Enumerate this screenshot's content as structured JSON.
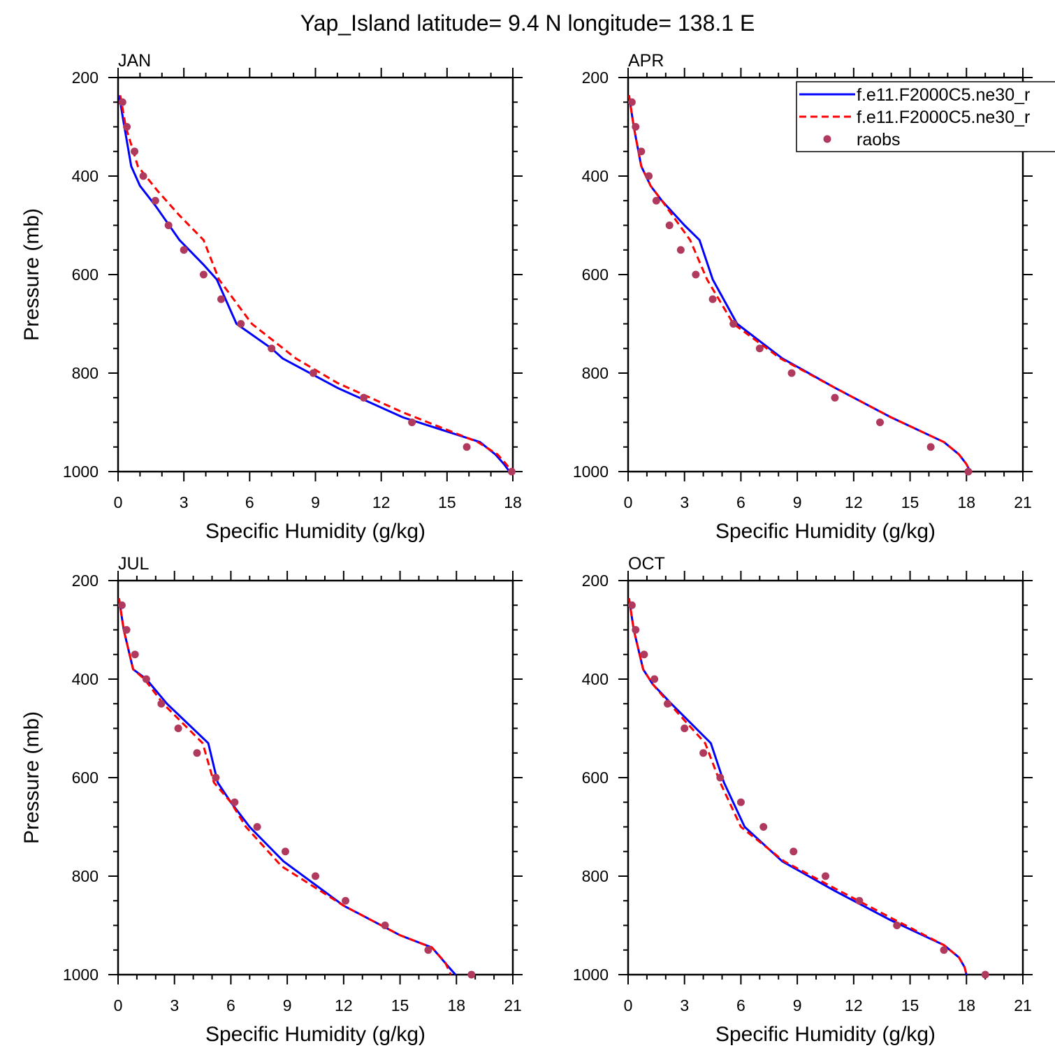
{
  "figure_title": "Yap_Island  latitude= 9.4 N longitude= 138.1 E",
  "legend": {
    "entries": [
      {
        "label": "f.e11.F2000C5.ne30_r",
        "style": "solid",
        "color": "#0000ff"
      },
      {
        "label": "f.e11.F2000C5.ne30_r",
        "style": "dashed",
        "color": "#ff0000"
      },
      {
        "label": "raobs",
        "style": "marker",
        "color": "#b03a5e"
      }
    ]
  },
  "colors": {
    "model_1": "#0000ff",
    "model_2": "#ff0000",
    "raobs": "#b03a5e"
  },
  "chart_data": [
    {
      "type": "line",
      "title": "JAN",
      "xlabel": "Specific Humidity (g/kg)",
      "ylabel": "Pressure (mb)",
      "xlim": [
        0,
        18
      ],
      "ylim": [
        200,
        1000
      ],
      "x_ticks": [
        0,
        3,
        6,
        9,
        12,
        15,
        18
      ],
      "y_ticks": [
        200,
        400,
        600,
        800,
        1000
      ],
      "series": [
        {
          "name": "f.e11.F2000C5.ne30_r",
          "style": "solid",
          "x": [
            0.05,
            0.25,
            0.6,
            1.0,
            1.7,
            2.8,
            3.9,
            4.5,
            5.4,
            7.0,
            7.5,
            10.0,
            13.0,
            16.5,
            17.2,
            17.6,
            17.85
          ],
          "y": [
            236,
            290,
            380,
            420,
            460,
            530,
            580,
            610,
            700,
            750,
            770,
            830,
            890,
            940,
            965,
            985,
            1000
          ]
        },
        {
          "name": "f.e11.F2000C5.ne30_r",
          "style": "dashed",
          "x": [
            0.1,
            0.35,
            0.9,
            1.8,
            2.8,
            3.9,
            4.6,
            6.1,
            8.1,
            10.0,
            13.0,
            16.4,
            17.3,
            17.7,
            17.95
          ],
          "y": [
            236,
            300,
            380,
            430,
            480,
            530,
            610,
            700,
            770,
            820,
            880,
            940,
            965,
            985,
            1000
          ]
        },
        {
          "name": "raobs",
          "style": "marker",
          "x": [
            0.2,
            0.4,
            0.75,
            1.15,
            1.7,
            2.3,
            3.0,
            3.9,
            4.7,
            5.6,
            7.0,
            8.9,
            11.2,
            13.4,
            15.9,
            17.95
          ],
          "y": [
            250,
            300,
            350,
            400,
            450,
            500,
            550,
            600,
            650,
            700,
            750,
            800,
            850,
            900,
            950,
            1000
          ]
        }
      ]
    },
    {
      "type": "line",
      "title": "APR",
      "xlabel": "Specific Humidity (g/kg)",
      "ylabel": "",
      "xlim": [
        0,
        21
      ],
      "ylim": [
        200,
        1000
      ],
      "x_ticks": [
        0,
        3,
        6,
        9,
        12,
        15,
        18,
        21
      ],
      "y_ticks": [
        200,
        400,
        600,
        800,
        1000
      ],
      "series": [
        {
          "name": "f.e11.F2000C5.ne30_r",
          "style": "solid",
          "x": [
            0.05,
            0.3,
            0.7,
            1.2,
            1.8,
            3.0,
            3.8,
            4.5,
            5.8,
            8.2,
            11.0,
            14.0,
            16.8,
            17.6,
            18.0,
            18.2
          ],
          "y": [
            236,
            300,
            380,
            420,
            450,
            500,
            530,
            610,
            700,
            770,
            830,
            890,
            940,
            965,
            985,
            1000
          ]
        },
        {
          "name": "f.e11.F2000C5.ne30_r",
          "style": "dashed",
          "x": [
            0.05,
            0.3,
            0.7,
            1.2,
            1.8,
            3.3,
            4.2,
            5.6,
            8.1,
            11.0,
            14.0,
            16.8,
            17.6,
            18.0,
            18.2
          ],
          "y": [
            236,
            300,
            380,
            420,
            450,
            530,
            610,
            700,
            770,
            830,
            890,
            940,
            965,
            985,
            1000
          ]
        },
        {
          "name": "raobs",
          "style": "marker",
          "x": [
            0.2,
            0.4,
            0.7,
            1.1,
            1.5,
            2.2,
            2.8,
            3.6,
            4.5,
            5.6,
            7.0,
            8.7,
            11.0,
            13.4,
            16.1,
            18.1
          ],
          "y": [
            250,
            300,
            350,
            400,
            450,
            500,
            550,
            600,
            650,
            700,
            750,
            800,
            850,
            900,
            950,
            1000
          ]
        }
      ]
    },
    {
      "type": "line",
      "title": "JUL",
      "xlabel": "Specific Humidity (g/kg)",
      "ylabel": "Pressure (mb)",
      "xlim": [
        0,
        21
      ],
      "ylim": [
        200,
        1000
      ],
      "x_ticks": [
        0,
        3,
        6,
        9,
        12,
        15,
        18,
        21
      ],
      "y_ticks": [
        200,
        400,
        600,
        800,
        1000
      ],
      "series": [
        {
          "name": "f.e11.F2000C5.ne30_r",
          "style": "solid",
          "x": [
            0.05,
            0.3,
            0.8,
            1.5,
            2.6,
            4.8,
            5.3,
            6.0,
            7.0,
            8.8,
            12.0,
            15.0,
            16.7,
            17.6,
            17.95
          ],
          "y": [
            236,
            300,
            380,
            400,
            450,
            530,
            610,
            650,
            700,
            770,
            860,
            920,
            945,
            985,
            1000
          ]
        },
        {
          "name": "f.e11.F2000C5.ne30_r",
          "style": "dashed",
          "x": [
            0.05,
            0.3,
            0.8,
            1.4,
            2.4,
            4.5,
            5.1,
            6.0,
            6.8,
            8.7,
            12.0,
            15.0,
            16.7,
            17.4,
            17.7
          ],
          "y": [
            236,
            300,
            380,
            400,
            450,
            530,
            610,
            650,
            700,
            780,
            860,
            920,
            945,
            975,
            1000
          ]
        },
        {
          "name": "raobs",
          "style": "marker",
          "x": [
            0.2,
            0.45,
            0.9,
            1.5,
            2.3,
            3.2,
            4.2,
            5.2,
            6.2,
            7.4,
            8.9,
            10.5,
            12.1,
            14.2,
            16.5,
            18.8
          ],
          "y": [
            250,
            300,
            350,
            400,
            450,
            500,
            550,
            600,
            650,
            700,
            750,
            800,
            850,
            900,
            950,
            1000
          ]
        }
      ]
    },
    {
      "type": "line",
      "title": "OCT",
      "xlabel": "Specific Humidity (g/kg)",
      "ylabel": "",
      "xlim": [
        0,
        21
      ],
      "ylim": [
        200,
        1000
      ],
      "x_ticks": [
        0,
        3,
        6,
        9,
        12,
        15,
        18,
        21
      ],
      "y_ticks": [
        200,
        400,
        600,
        800,
        1000
      ],
      "series": [
        {
          "name": "f.e11.F2000C5.ne30_r",
          "style": "solid",
          "x": [
            0.05,
            0.3,
            0.8,
            1.3,
            2.3,
            4.4,
            5.1,
            6.2,
            8.2,
            11.0,
            14.0,
            16.8,
            17.6,
            17.9,
            18.0
          ],
          "y": [
            236,
            300,
            380,
            410,
            450,
            530,
            610,
            700,
            770,
            830,
            890,
            940,
            965,
            985,
            1000
          ]
        },
        {
          "name": "f.e11.F2000C5.ne30_r",
          "style": "dashed",
          "x": [
            0.05,
            0.3,
            0.8,
            1.3,
            2.2,
            4.1,
            4.9,
            6.0,
            8.3,
            11.0,
            14.0,
            16.8,
            17.6,
            17.9,
            18.0
          ],
          "y": [
            236,
            300,
            380,
            410,
            450,
            530,
            610,
            700,
            770,
            825,
            885,
            940,
            965,
            985,
            1000
          ]
        },
        {
          "name": "raobs",
          "style": "marker",
          "x": [
            0.2,
            0.4,
            0.85,
            1.4,
            2.1,
            3.0,
            4.0,
            4.9,
            6.0,
            7.2,
            8.8,
            10.5,
            12.3,
            14.3,
            16.8,
            19.0
          ],
          "y": [
            250,
            300,
            350,
            400,
            450,
            500,
            550,
            600,
            650,
            700,
            750,
            800,
            850,
            900,
            950,
            1000
          ]
        }
      ]
    }
  ]
}
